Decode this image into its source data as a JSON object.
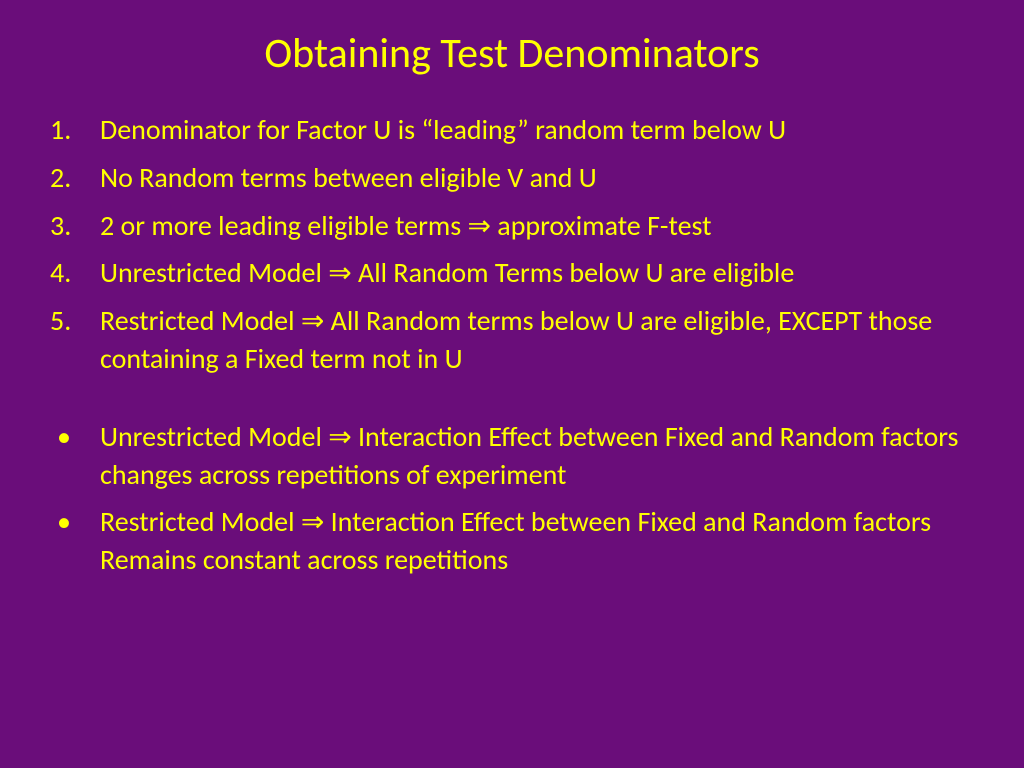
{
  "colors": {
    "background": "#6a0d7a",
    "text": "#ffff00"
  },
  "typography": {
    "title_fontsize": 42,
    "body_fontsize": 28,
    "font_family": "Calibri"
  },
  "title": "Obtaining Test Denominators",
  "numbered_items": [
    "Denominator for Factor U is “leading” random term below U",
    "No Random terms between eligible V and U",
    "2 or more leading eligible terms ⇒ approximate F-test",
    "Unrestricted Model ⇒ All Random Terms below U are eligible",
    "Restricted Model ⇒ All Random terms below U are eligible, EXCEPT those containing a Fixed term not in U"
  ],
  "bulleted_items": [
    "Unrestricted Model ⇒ Interaction Effect between Fixed and Random factors changes across repetitions of experiment",
    "Restricted Model ⇒ Interaction Effect between Fixed and Random factors Remains constant across repetitions"
  ]
}
